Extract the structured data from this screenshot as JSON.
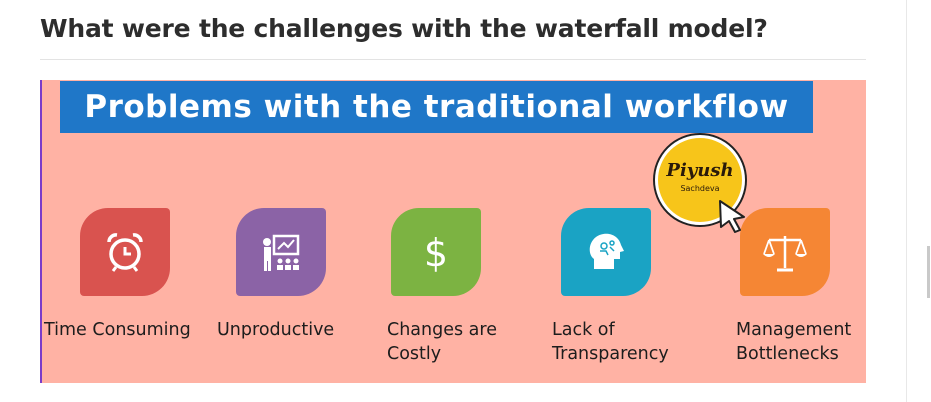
{
  "question": {
    "title": "What were the challenges with the waterfall model?"
  },
  "infographic": {
    "banner_title": "Problems with the traditional workflow",
    "logo": {
      "name": "Piyush",
      "sub": "Sachdeva"
    },
    "items": [
      {
        "label_lines": [
          "Time Consuming"
        ],
        "icon": "alarm-clock-icon",
        "color": "#d9534f"
      },
      {
        "label_lines": [
          "Unproductive"
        ],
        "icon": "presentation-board-icon",
        "color": "#8b63a6"
      },
      {
        "label_lines": [
          "Changes are",
          "Costly"
        ],
        "icon": "dollar-sign-icon",
        "color": "#7cb342"
      },
      {
        "label_lines": [
          "Lack of",
          "Transparency"
        ],
        "icon": "brain-head-icon",
        "color": "#1aa3c4"
      },
      {
        "label_lines": [
          "Management",
          "Bottlenecks"
        ],
        "icon": "balance-scale-icon",
        "color": "#f58634"
      }
    ]
  }
}
